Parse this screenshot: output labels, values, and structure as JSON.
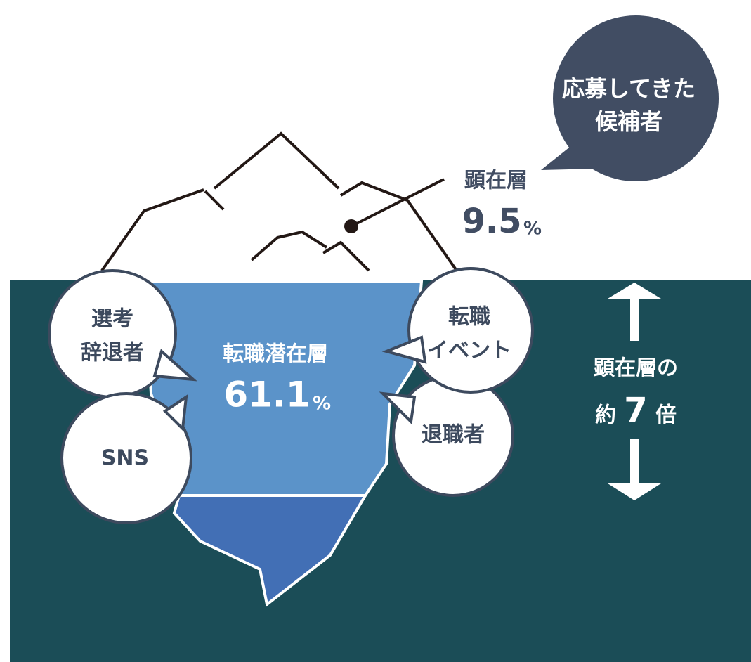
{
  "candidate_bubble": {
    "lines": [
      "応募してきた",
      "候補者"
    ]
  },
  "visible_layer": {
    "label": "顕在層",
    "value": 9.5,
    "unit": "%"
  },
  "latent_layer": {
    "label": "転職潜在層",
    "value": 61.1,
    "unit": "%"
  },
  "bubbles": [
    {
      "lines": [
        "選考",
        "辞退者"
      ]
    },
    {
      "lines": [
        "SNS"
      ]
    },
    {
      "lines": [
        "転職",
        "イベント"
      ]
    },
    {
      "lines": [
        "退職者"
      ]
    }
  ],
  "ratio": {
    "label": "顕在層の",
    "prefix": "約",
    "value": 7,
    "suffix": "倍"
  }
}
